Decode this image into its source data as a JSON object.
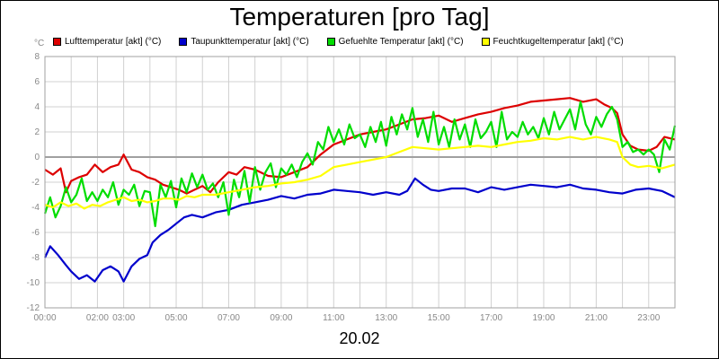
{
  "title": "Temperaturen [pro Tag]",
  "date_label": "20.02",
  "unit_label": "°C",
  "legend": [
    {
      "label": "Lufttemperatur [akt] (°C)",
      "color": "#dd0000"
    },
    {
      "label": "Taupunkttemperatur [akt] (°C)",
      "color": "#0000cc"
    },
    {
      "label": "Gefuehlte Temperatur [akt] (°C)",
      "color": "#00dd00"
    },
    {
      "label": "Feuchtkugeltemperatur [akt] (°C)",
      "color": "#ffff00"
    }
  ],
  "chart_data": {
    "type": "line",
    "title": "Temperaturen [pro Tag]",
    "xlabel": "20.02",
    "ylabel": "°C",
    "xlim": [
      0,
      24
    ],
    "ylim": [
      -12,
      8
    ],
    "grid": true,
    "legend_position": "top",
    "x_ticks": [
      "00:00",
      "02:00",
      "03:00",
      "05:00",
      "07:00",
      "09:00",
      "11:00",
      "13:00",
      "15:00",
      "17:00",
      "19:00",
      "21:00",
      "23:00"
    ],
    "x_tick_hours": [
      0,
      2,
      3,
      5,
      7,
      9,
      11,
      13,
      15,
      17,
      19,
      21,
      23
    ],
    "y_ticks": [
      -12,
      -10,
      -8,
      -6,
      -4,
      -2,
      0,
      2,
      4,
      6,
      8
    ],
    "series": [
      {
        "name": "Lufttemperatur [akt] (°C)",
        "color": "#dd0000",
        "x": [
          0,
          0.3,
          0.6,
          0.8,
          1.0,
          1.3,
          1.6,
          1.9,
          2.2,
          2.5,
          2.8,
          3.0,
          3.3,
          3.6,
          3.9,
          4.2,
          4.5,
          4.8,
          5.1,
          5.4,
          5.7,
          6.0,
          6.3,
          6.6,
          7.0,
          7.3,
          7.6,
          8.0,
          8.5,
          9.0,
          9.5,
          10.0,
          10.5,
          11.0,
          11.5,
          12.0,
          12.5,
          13.0,
          13.5,
          14.0,
          14.5,
          15.0,
          15.5,
          16.0,
          16.5,
          17.0,
          17.5,
          18.0,
          18.5,
          19.0,
          19.5,
          20.0,
          20.5,
          21.0,
          21.3,
          21.6,
          21.8,
          22.0,
          22.3,
          22.6,
          23.0,
          23.3,
          23.6,
          24.0
        ],
        "y": [
          -1.0,
          -1.4,
          -0.9,
          -2.8,
          -1.9,
          -1.6,
          -1.4,
          -0.6,
          -1.2,
          -0.8,
          -0.6,
          0.2,
          -1.0,
          -1.2,
          -1.6,
          -1.8,
          -2.2,
          -2.4,
          -2.6,
          -2.9,
          -2.6,
          -2.3,
          -2.8,
          -2.0,
          -1.2,
          -1.4,
          -0.8,
          -1.0,
          -1.5,
          -1.6,
          -1.2,
          -0.8,
          0.2,
          1.0,
          1.4,
          1.8,
          2.0,
          2.2,
          2.6,
          3.0,
          3.1,
          3.3,
          2.8,
          3.1,
          3.4,
          3.6,
          3.9,
          4.1,
          4.4,
          4.5,
          4.6,
          4.7,
          4.4,
          4.6,
          4.2,
          3.9,
          3.5,
          1.8,
          0.9,
          0.6,
          0.5,
          0.8,
          1.6,
          1.4
        ]
      },
      {
        "name": "Taupunkttemperatur [akt] (°C)",
        "color": "#0000cc",
        "x": [
          0,
          0.2,
          0.5,
          0.8,
          1.0,
          1.3,
          1.6,
          1.9,
          2.2,
          2.5,
          2.8,
          3.0,
          3.3,
          3.6,
          3.9,
          4.1,
          4.4,
          4.7,
          5.0,
          5.3,
          5.6,
          6.0,
          6.5,
          7.0,
          7.5,
          8.0,
          8.5,
          9.0,
          9.5,
          10.0,
          10.5,
          11.0,
          11.5,
          12.0,
          12.5,
          13.0,
          13.5,
          13.8,
          14.1,
          14.4,
          14.7,
          15.0,
          15.5,
          16.0,
          16.5,
          17.0,
          17.5,
          18.0,
          18.5,
          19.0,
          19.5,
          20.0,
          20.5,
          21.0,
          21.5,
          22.0,
          22.5,
          23.0,
          23.5,
          24.0
        ],
        "y": [
          -8.0,
          -7.1,
          -7.8,
          -8.6,
          -9.1,
          -9.7,
          -9.4,
          -9.9,
          -9.0,
          -8.7,
          -9.1,
          -9.9,
          -8.7,
          -8.1,
          -7.8,
          -6.8,
          -6.2,
          -5.8,
          -5.3,
          -4.8,
          -4.6,
          -4.8,
          -4.4,
          -4.2,
          -3.8,
          -3.6,
          -3.4,
          -3.1,
          -3.3,
          -3.0,
          -2.9,
          -2.6,
          -2.7,
          -2.8,
          -3.0,
          -2.8,
          -3.0,
          -2.7,
          -1.7,
          -2.2,
          -2.6,
          -2.7,
          -2.5,
          -2.5,
          -2.8,
          -2.4,
          -2.6,
          -2.4,
          -2.2,
          -2.3,
          -2.4,
          -2.2,
          -2.5,
          -2.6,
          -2.8,
          -2.9,
          -2.6,
          -2.5,
          -2.7,
          -3.2
        ]
      },
      {
        "name": "Gefuehlte Temperatur [akt] (°C)",
        "color": "#00dd00",
        "x": [
          0,
          0.2,
          0.4,
          0.6,
          0.8,
          1.0,
          1.2,
          1.4,
          1.6,
          1.8,
          2.0,
          2.2,
          2.4,
          2.6,
          2.8,
          3.0,
          3.2,
          3.4,
          3.6,
          3.8,
          4.0,
          4.2,
          4.4,
          4.6,
          4.8,
          5.0,
          5.2,
          5.4,
          5.6,
          5.8,
          6.0,
          6.2,
          6.4,
          6.6,
          6.8,
          7.0,
          7.2,
          7.4,
          7.6,
          7.8,
          8.0,
          8.2,
          8.4,
          8.6,
          8.8,
          9.0,
          9.2,
          9.4,
          9.6,
          9.8,
          10.0,
          10.2,
          10.4,
          10.6,
          10.8,
          11.0,
          11.2,
          11.4,
          11.6,
          11.8,
          12.0,
          12.2,
          12.4,
          12.6,
          12.8,
          13.0,
          13.2,
          13.4,
          13.6,
          13.8,
          14.0,
          14.2,
          14.4,
          14.6,
          14.8,
          15.0,
          15.2,
          15.4,
          15.6,
          15.8,
          16.0,
          16.2,
          16.4,
          16.6,
          16.8,
          17.0,
          17.2,
          17.4,
          17.6,
          17.8,
          18.0,
          18.2,
          18.4,
          18.6,
          18.8,
          19.0,
          19.2,
          19.4,
          19.6,
          19.8,
          20.0,
          20.2,
          20.4,
          20.6,
          20.8,
          21.0,
          21.2,
          21.4,
          21.6,
          21.8,
          22.0,
          22.2,
          22.4,
          22.6,
          22.8,
          23.0,
          23.2,
          23.4,
          23.6,
          23.8,
          24.0
        ],
        "y": [
          -4.5,
          -3.2,
          -4.8,
          -3.9,
          -2.4,
          -3.6,
          -3.0,
          -1.7,
          -3.5,
          -2.8,
          -3.5,
          -2.6,
          -3.2,
          -2.0,
          -3.8,
          -2.6,
          -3.0,
          -2.2,
          -3.9,
          -2.7,
          -2.8,
          -5.5,
          -2.2,
          -3.2,
          -1.9,
          -4.0,
          -1.7,
          -2.8,
          -1.3,
          -2.4,
          -1.4,
          -2.6,
          -2.1,
          -3.2,
          -2.0,
          -4.6,
          -1.8,
          -3.2,
          -1.1,
          -3.6,
          -0.8,
          -2.6,
          -1.2,
          -0.5,
          -2.4,
          -0.9,
          -1.4,
          -0.6,
          -1.6,
          -0.4,
          0.3,
          -0.6,
          1.2,
          0.6,
          2.4,
          1.2,
          2.2,
          1.0,
          2.6,
          1.5,
          1.8,
          0.8,
          2.4,
          1.2,
          2.8,
          0.9,
          3.2,
          1.8,
          3.4,
          2.2,
          3.9,
          1.6,
          3.0,
          1.2,
          3.6,
          1.0,
          2.4,
          0.8,
          3.0,
          1.4,
          2.6,
          0.8,
          3.0,
          1.5,
          2.0,
          2.8,
          0.8,
          3.6,
          1.4,
          2.0,
          1.6,
          2.8,
          1.8,
          2.4,
          1.5,
          3.1,
          1.8,
          3.6,
          2.2,
          3.0,
          3.8,
          2.2,
          4.4,
          2.6,
          1.8,
          3.2,
          2.4,
          3.4,
          4.0,
          3.0,
          0.8,
          1.2,
          0.4,
          0.6,
          0.2,
          0.6,
          0.2,
          -1.2,
          1.4,
          0.6,
          2.5
        ]
      },
      {
        "name": "Feuchtkugeltemperatur [akt] (°C)",
        "color": "#ffff00",
        "x": [
          0,
          0.3,
          0.6,
          0.9,
          1.2,
          1.5,
          1.8,
          2.1,
          2.4,
          2.7,
          3.0,
          3.3,
          3.6,
          3.9,
          4.2,
          4.5,
          4.8,
          5.1,
          5.4,
          5.7,
          6.0,
          6.5,
          7.0,
          7.5,
          8.0,
          8.5,
          9.0,
          9.5,
          10.0,
          10.5,
          11.0,
          11.5,
          12.0,
          12.5,
          13.0,
          13.5,
          14.0,
          14.5,
          15.0,
          15.5,
          16.0,
          16.5,
          17.0,
          17.5,
          18.0,
          18.5,
          19.0,
          19.5,
          20.0,
          20.5,
          21.0,
          21.5,
          21.8,
          22.0,
          22.3,
          22.6,
          23.0,
          23.5,
          24.0
        ],
        "y": [
          -3.8,
          -4.0,
          -3.6,
          -3.9,
          -3.7,
          -4.1,
          -3.8,
          -3.9,
          -3.6,
          -3.4,
          -3.2,
          -3.5,
          -3.4,
          -3.6,
          -3.5,
          -3.3,
          -3.3,
          -3.4,
          -3.1,
          -3.2,
          -3.0,
          -3.0,
          -2.8,
          -2.6,
          -2.4,
          -2.3,
          -2.1,
          -2.0,
          -1.8,
          -1.5,
          -0.8,
          -0.6,
          -0.4,
          -0.2,
          0.0,
          0.4,
          0.8,
          0.7,
          0.6,
          0.7,
          0.8,
          0.9,
          0.8,
          1.0,
          1.2,
          1.3,
          1.5,
          1.4,
          1.6,
          1.4,
          1.6,
          1.4,
          1.2,
          0.0,
          -0.6,
          -0.8,
          -0.7,
          -0.9,
          -0.6
        ]
      }
    ]
  }
}
